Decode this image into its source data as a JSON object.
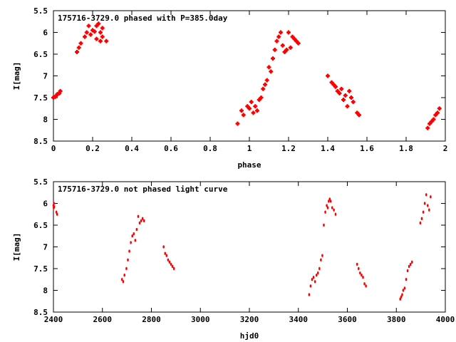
{
  "chart_data": [
    {
      "type": "scatter",
      "title": "175716-3729.0 phased with P=385.0day",
      "xlabel": "phase",
      "ylabel": "I[mag]",
      "xlim": [
        0,
        2
      ],
      "ylim": [
        8.5,
        5.5
      ],
      "y_inverted": true,
      "xticks": [
        "0",
        "0.2",
        "0.4",
        "0.6",
        "0.8",
        "1",
        "1.2",
        "1.4",
        "1.6",
        "1.8",
        "2"
      ],
      "yticks": [
        "5.5",
        "6",
        "6.5",
        "7",
        "7.5",
        "8",
        "8.5"
      ],
      "marker_color": "#ff0000",
      "series": [
        {
          "x": [
            0.0,
            0.01,
            0.015,
            0.02,
            0.03,
            0.035,
            0.12,
            0.13,
            0.14,
            0.16,
            0.17,
            0.18,
            0.19,
            0.2,
            0.21,
            0.22,
            0.22,
            0.23,
            0.24,
            0.24,
            0.25,
            0.25,
            0.27,
            0.94,
            0.96,
            0.97,
            0.99,
            1.0,
            1.01,
            1.02,
            1.03,
            1.04,
            1.05,
            1.06,
            1.07,
            1.08,
            1.09,
            1.1,
            1.11,
            1.12,
            1.13,
            1.14,
            1.15,
            1.16,
            1.17,
            1.18,
            1.19,
            1.2,
            1.21,
            1.22,
            1.23,
            1.24,
            1.25,
            1.4,
            1.42,
            1.43,
            1.44,
            1.45,
            1.46,
            1.47,
            1.48,
            1.49,
            1.5,
            1.51,
            1.52,
            1.53,
            1.55,
            1.56,
            1.91,
            1.92,
            1.93,
            1.94,
            1.95,
            1.96,
            1.97
          ],
          "y": [
            7.5,
            7.48,
            7.45,
            7.42,
            7.4,
            7.35,
            6.45,
            6.35,
            6.25,
            6.1,
            6.0,
            5.85,
            6.05,
            5.95,
            5.98,
            6.15,
            5.85,
            5.8,
            6.0,
            6.2,
            5.9,
            6.1,
            6.2,
            8.1,
            7.8,
            7.9,
            7.7,
            7.75,
            7.6,
            7.85,
            7.7,
            7.8,
            7.55,
            7.5,
            7.3,
            7.2,
            7.1,
            6.8,
            6.9,
            6.6,
            6.4,
            6.2,
            6.1,
            6.0,
            6.3,
            6.45,
            6.4,
            6.0,
            6.35,
            6.1,
            6.15,
            6.2,
            6.25,
            7.0,
            7.15,
            7.2,
            7.25,
            7.35,
            7.4,
            7.3,
            7.55,
            7.45,
            7.7,
            7.35,
            7.5,
            7.6,
            7.85,
            7.9,
            8.2,
            8.1,
            8.05,
            8.0,
            7.9,
            7.85,
            7.75
          ]
        }
      ]
    },
    {
      "type": "scatter",
      "title": "175716-3729.0 not phased light curve",
      "xlabel": "hjd0",
      "ylabel": "I[mag]",
      "xlim": [
        2400,
        4000
      ],
      "ylim": [
        8.5,
        5.5
      ],
      "y_inverted": true,
      "xticks": [
        "2400",
        "2600",
        "2800",
        "3000",
        "3200",
        "3400",
        "3600",
        "3800",
        "4000"
      ],
      "yticks": [
        "5.5",
        "6",
        "6.5",
        "7",
        "7.5",
        "8",
        "8.5"
      ],
      "marker_color": "#ff0000",
      "series": [
        {
          "x": [
            2400,
            2401,
            2402,
            2403,
            2412,
            2415,
            2680,
            2685,
            2690,
            2698,
            2704,
            2710,
            2716,
            2722,
            2728,
            2734,
            2740,
            2746,
            2752,
            2758,
            2764,
            2770,
            2850,
            2856,
            2862,
            2868,
            2874,
            2880,
            2886,
            2892,
            3444,
            3450,
            3456,
            3462,
            3468,
            3474,
            3480,
            3486,
            3492,
            3498,
            3504,
            3510,
            3516,
            3520,
            3524,
            3528,
            3532,
            3538,
            3545,
            3552,
            3640,
            3646,
            3652,
            3658,
            3664,
            3670,
            3676,
            3816,
            3820,
            3824,
            3828,
            3834,
            3840,
            3846,
            3852,
            3858,
            3864,
            3898,
            3904,
            3910,
            3916,
            3922,
            3928,
            3934,
            3940
          ],
          "y": [
            6.05,
            6.1,
            6.0,
            6.08,
            6.2,
            6.25,
            7.75,
            7.8,
            7.65,
            7.5,
            7.3,
            7.1,
            6.9,
            6.75,
            6.7,
            6.85,
            6.6,
            6.3,
            6.45,
            6.4,
            6.35,
            6.4,
            7.0,
            7.15,
            7.2,
            7.3,
            7.35,
            7.4,
            7.45,
            7.5,
            8.1,
            7.9,
            7.75,
            7.7,
            7.8,
            7.65,
            7.6,
            7.5,
            7.3,
            7.2,
            6.5,
            6.2,
            6.05,
            6.1,
            5.95,
            5.9,
            5.95,
            6.1,
            6.15,
            6.25,
            7.4,
            7.5,
            7.6,
            7.65,
            7.7,
            7.85,
            7.9,
            8.2,
            8.15,
            8.1,
            8.0,
            7.95,
            7.75,
            7.55,
            7.45,
            7.4,
            7.35,
            6.45,
            6.35,
            6.2,
            6.0,
            5.8,
            6.05,
            6.15,
            5.85
          ]
        }
      ]
    }
  ]
}
